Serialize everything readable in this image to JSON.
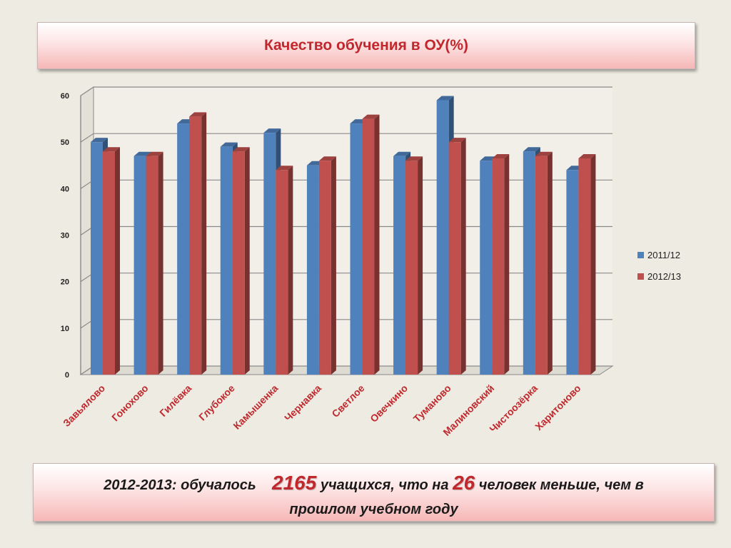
{
  "title": "Качество обучения в ОУ(%)",
  "note": {
    "part1": "2012-2013: обучалось",
    "highlight1": "2165",
    "part2": "учащихся, что на",
    "highlight2": "26",
    "part3": "человек  меньше, чем в",
    "part4": "прошлом учебном году"
  },
  "colors": {
    "series_2011": "#4f81bd",
    "series_2012": "#c0504d",
    "category_label": "#c0282d",
    "accent": "#c0282d"
  },
  "chart_data": {
    "type": "bar",
    "categories": [
      "Завьялово",
      "Гонохово",
      "Гилёвка",
      "Глубокое",
      "Камышенка",
      "Чернавка",
      "Светлое",
      "Овечкино",
      "Туманово",
      "Малиновский",
      "Чистоозёрка",
      "Харитоново"
    ],
    "series": [
      {
        "name": "2011/12",
        "values": [
          50,
          47,
          54,
          49,
          52,
          45,
          54,
          47,
          59,
          46,
          48,
          44
        ]
      },
      {
        "name": "2012/13",
        "values": [
          48,
          47,
          55.5,
          48,
          44,
          46,
          55,
          46,
          50,
          46.5,
          47,
          46.5
        ]
      }
    ],
    "ylim": [
      0,
      60
    ],
    "yticks": [
      "0",
      "10",
      "20",
      "30",
      "40",
      "50",
      "60"
    ],
    "grid": true,
    "legend": "right"
  }
}
